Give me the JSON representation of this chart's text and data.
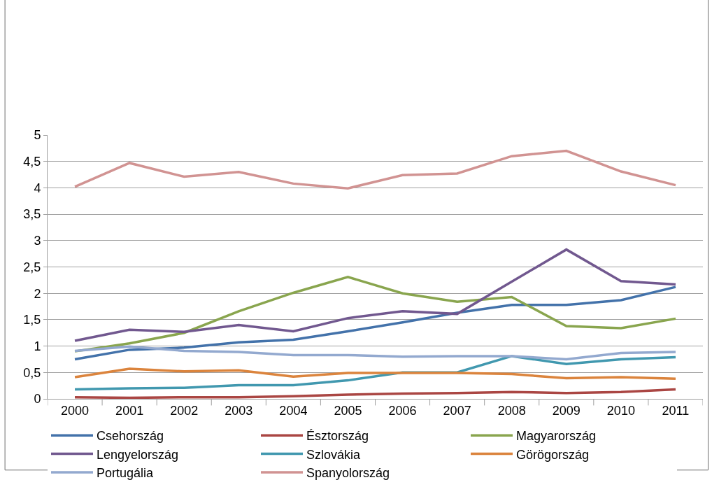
{
  "chart_data": {
    "type": "line",
    "categories": [
      "2000",
      "2001",
      "2002",
      "2003",
      "2004",
      "2005",
      "2006",
      "2007",
      "2008",
      "2009",
      "2010",
      "2011"
    ],
    "ylim": [
      0,
      5
    ],
    "yticks": [
      0,
      {
        "value": 0.5,
        "label": "0,5"
      },
      1,
      {
        "value": 1.5,
        "label": "1,5"
      },
      2,
      {
        "value": 2.5,
        "label": "2,5"
      },
      3,
      {
        "value": 3.5,
        "label": "3,5"
      },
      4,
      {
        "value": 4.5,
        "label": "4,5"
      },
      5
    ],
    "grid": "y",
    "legend": "bottom",
    "marker": "none",
    "line_style": "solid",
    "series": [
      {
        "name": "Csehország",
        "color": "#4372aa",
        "values": [
          0.75,
          0.93,
          0.97,
          1.07,
          1.12,
          1.28,
          1.45,
          1.63,
          1.78,
          1.78,
          1.87,
          2.12
        ]
      },
      {
        "name": "Észtország",
        "color": "#aa4643",
        "values": [
          0.03,
          0.02,
          0.03,
          0.03,
          0.05,
          0.08,
          0.1,
          0.11,
          0.13,
          0.11,
          0.13,
          0.18
        ]
      },
      {
        "name": "Magyarország",
        "color": "#89a54e",
        "values": [
          0.9,
          1.05,
          1.25,
          1.66,
          2.01,
          2.31,
          2.0,
          1.84,
          1.93,
          1.38,
          1.34,
          1.52
        ]
      },
      {
        "name": "Lengyelország",
        "color": "#71588f",
        "values": [
          1.1,
          1.31,
          1.27,
          1.4,
          1.28,
          1.53,
          1.66,
          1.61,
          2.22,
          2.83,
          2.23,
          2.17
        ]
      },
      {
        "name": "Szlovákia",
        "color": "#4198af",
        "values": [
          0.18,
          0.2,
          0.21,
          0.26,
          0.26,
          0.35,
          0.5,
          0.5,
          0.81,
          0.66,
          0.75,
          0.79
        ]
      },
      {
        "name": "Görögország",
        "color": "#db843d",
        "values": [
          0.41,
          0.57,
          0.52,
          0.54,
          0.42,
          0.49,
          0.49,
          0.49,
          0.47,
          0.39,
          0.41,
          0.38
        ]
      },
      {
        "name": "Portugália",
        "color": "#93a9cf",
        "values": [
          0.91,
          0.99,
          0.91,
          0.89,
          0.83,
          0.83,
          0.8,
          0.81,
          0.81,
          0.75,
          0.87,
          0.89
        ]
      },
      {
        "name": "Spanyolország",
        "color": "#d19392",
        "values": [
          4.02,
          4.47,
          4.21,
          4.3,
          4.08,
          3.99,
          4.24,
          4.27,
          4.6,
          4.7,
          4.31,
          4.05
        ]
      }
    ]
  }
}
